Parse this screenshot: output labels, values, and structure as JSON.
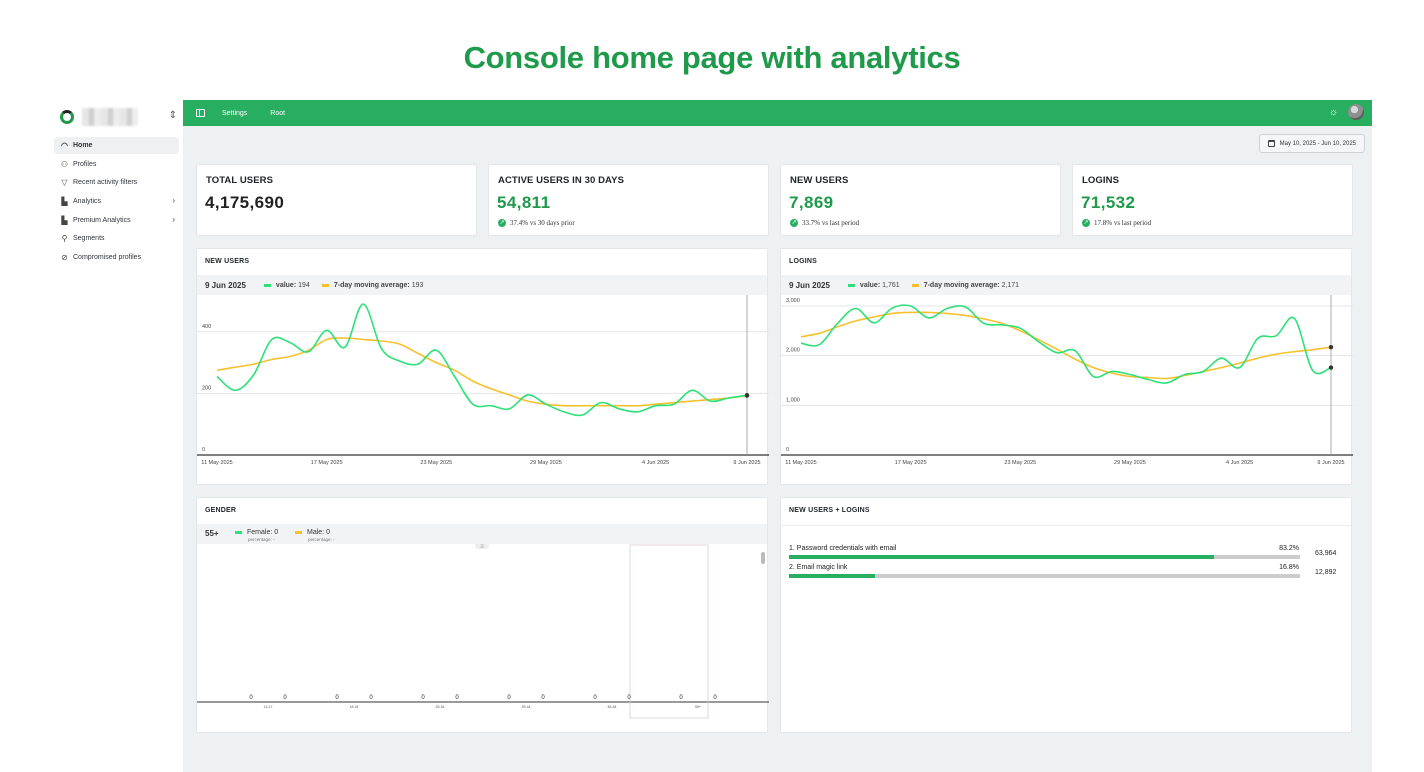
{
  "caption": "Console home page with analytics",
  "sidebar": {
    "items": [
      {
        "label": "Home",
        "icon": "gauge-icon",
        "active": true,
        "has_children": false
      },
      {
        "label": "Profiles",
        "icon": "users-icon",
        "active": false,
        "has_children": false
      },
      {
        "label": "Recent activity filters",
        "icon": "filter-icon",
        "active": false,
        "has_children": false
      },
      {
        "label": "Analytics",
        "icon": "bar-chart-icon",
        "active": false,
        "has_children": true
      },
      {
        "label": "Premium Analytics",
        "icon": "bar-chart-icon",
        "active": false,
        "has_children": true
      },
      {
        "label": "Segments",
        "icon": "segments-icon",
        "active": false,
        "has_children": false
      },
      {
        "label": "Compromised profiles",
        "icon": "ban-icon",
        "active": false,
        "has_children": false
      }
    ]
  },
  "topbar": {
    "color": "#27ae60",
    "links": [
      "Settings",
      "Root"
    ]
  },
  "date_range": "May 10, 2025 - Jun 10, 2025",
  "stats": [
    {
      "title": "TOTAL USERS",
      "value": "4,175,690",
      "delta": "",
      "green": false
    },
    {
      "title": "ACTIVE USERS IN 30 DAYS",
      "value": "54,811",
      "delta": "37.4% vs 30 days prior",
      "green": true
    },
    {
      "title": "NEW USERS",
      "value": "7,869",
      "delta": "33.7% vs last period",
      "green": true
    },
    {
      "title": "LOGINS",
      "value": "71,532",
      "delta": "17.8% vs last period",
      "green": true
    }
  ],
  "new_users_chart": {
    "title": "NEW USERS",
    "legend": {
      "date": "9 Jun 2025",
      "value_label": "value:",
      "value": "194",
      "avg_label": "7-day moving average:",
      "avg": "193"
    }
  },
  "logins_chart": {
    "title": "LOGINS",
    "legend": {
      "date": "9 Jun 2025",
      "value_label": "value:",
      "value": "1,761",
      "avg_label": "7-day moving average:",
      "avg": "2,171"
    }
  },
  "gender": {
    "title": "GENDER",
    "age_label": "55+",
    "female_label": "Female:",
    "female_value": "0",
    "male_label": "Male:",
    "male_value": "0",
    "percentage_label": "percentage: -"
  },
  "auth": {
    "title": "NEW USERS + LOGINS",
    "rows": [
      {
        "label": "1. Password credentials with email",
        "pct": "83.2%",
        "fraction": 0.832,
        "count": "63,964"
      },
      {
        "label": "2. Email magic link",
        "pct": "16.8%",
        "fraction": 0.168,
        "count": "12,892"
      }
    ]
  },
  "chart_data": [
    {
      "type": "line",
      "title": "NEW USERS",
      "ylim": [
        0,
        500
      ],
      "yticks": [
        0,
        200,
        400
      ],
      "ytick_labels": [
        "0",
        "200",
        "400"
      ],
      "xticks": [
        1,
        7,
        13,
        19,
        25,
        30
      ],
      "xtick_labels": [
        "11 May 2025",
        "17 May 2025",
        "23 May 2025",
        "29 May 2025",
        "4 Jun 2025",
        "9 Jun 2025"
      ],
      "series": [
        {
          "name": "value",
          "color": "#2ee07a",
          "values": [
            255,
            210,
            260,
            375,
            365,
            335,
            405,
            350,
            490,
            345,
            305,
            295,
            340,
            255,
            165,
            160,
            150,
            195,
            165,
            140,
            130,
            170,
            150,
            140,
            160,
            165,
            210,
            175,
            185,
            194
          ]
        },
        {
          "name": "7-day moving average",
          "color": "#f6c12c",
          "values": [
            275,
            285,
            295,
            310,
            320,
            340,
            375,
            380,
            375,
            370,
            360,
            330,
            300,
            275,
            240,
            215,
            195,
            175,
            165,
            160,
            160,
            160,
            160,
            160,
            165,
            170,
            175,
            180,
            185,
            193
          ]
        }
      ]
    },
    {
      "type": "line",
      "title": "LOGINS",
      "ylim": [
        0,
        3100
      ],
      "yticks": [
        0,
        1000,
        2000,
        3000
      ],
      "ytick_labels": [
        "0",
        "1,000",
        "2,000",
        "3,000"
      ],
      "xticks": [
        1,
        7,
        13,
        19,
        25,
        30
      ],
      "xtick_labels": [
        "11 May 2025",
        "17 May 2025",
        "23 May 2025",
        "29 May 2025",
        "4 Jun 2025",
        "9 Jun 2025"
      ],
      "series": [
        {
          "name": "value",
          "color": "#2ee07a",
          "values": [
            2250,
            2220,
            2650,
            2950,
            2660,
            2960,
            3000,
            2760,
            2950,
            2980,
            2650,
            2620,
            2550,
            2280,
            2060,
            2100,
            1580,
            1680,
            1620,
            1520,
            1450,
            1620,
            1680,
            1950,
            1760,
            2350,
            2400,
            2750,
            1700,
            1761
          ]
        },
        {
          "name": "7-day moving average",
          "color": "#f6c12c",
          "values": [
            2380,
            2450,
            2580,
            2700,
            2780,
            2850,
            2870,
            2870,
            2850,
            2810,
            2740,
            2650,
            2500,
            2320,
            2130,
            1930,
            1760,
            1650,
            1580,
            1560,
            1540,
            1600,
            1680,
            1760,
            1850,
            1950,
            2030,
            2080,
            2120,
            2171
          ]
        }
      ]
    },
    {
      "type": "bar",
      "title": "GENDER",
      "categories": [
        "13-17",
        "18-24",
        "25-34",
        "35-44",
        "45-54",
        "55+"
      ],
      "series": [
        {
          "name": "Female",
          "values": [
            0,
            0,
            0,
            0,
            0,
            0
          ]
        },
        {
          "name": "Male",
          "values": [
            0,
            0,
            0,
            0,
            0,
            0
          ]
        }
      ]
    }
  ]
}
